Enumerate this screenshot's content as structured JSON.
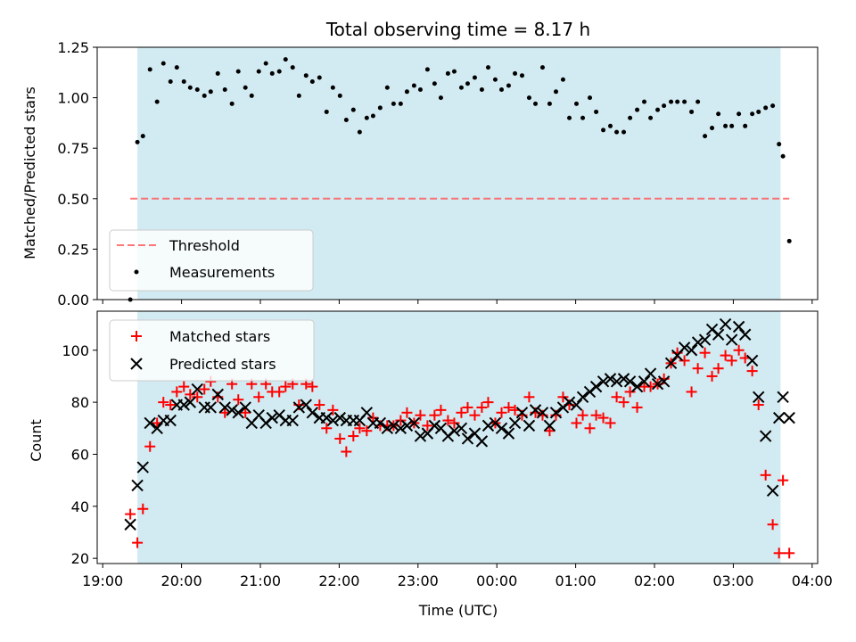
{
  "chart_data": [
    {
      "type": "scatter",
      "title": "Total observing time = 8.17 h",
      "xlabel": "",
      "ylabel": "Matched/Predicted stars",
      "x_unit": "hours after 19:00 UTC on the night start",
      "xlim": [
        -0.07,
        9.07
      ],
      "ylim": [
        0,
        1.25
      ],
      "yticks": [
        "0.00",
        "0.25",
        "0.50",
        "0.75",
        "1.00",
        "1.25"
      ],
      "shaded_interval": [
        0.44,
        8.6
      ],
      "shade_color": "#add8e6",
      "legend": {
        "location": "lower left",
        "entries": [
          "Threshold",
          "Measurements"
        ]
      },
      "series": [
        {
          "name": "Threshold",
          "style": "dashed line",
          "color": "#ff5555",
          "x": [
            0.35,
            8.71
          ],
          "y": [
            0.5,
            0.5
          ]
        },
        {
          "name": "Measurements",
          "style": "dots",
          "color": "#000000",
          "x": [
            0.35,
            0.44,
            0.51,
            0.6,
            0.69,
            0.77,
            0.86,
            0.94,
            1.03,
            1.11,
            1.2,
            1.29,
            1.37,
            1.46,
            1.55,
            1.64,
            1.72,
            1.81,
            1.89,
            1.98,
            2.07,
            2.15,
            2.24,
            2.32,
            2.41,
            2.49,
            2.58,
            2.66,
            2.75,
            2.84,
            2.92,
            3.01,
            3.09,
            3.18,
            3.26,
            3.35,
            3.43,
            3.52,
            3.61,
            3.69,
            3.78,
            3.86,
            3.95,
            4.03,
            4.12,
            4.21,
            4.29,
            4.38,
            4.46,
            4.55,
            4.63,
            4.72,
            4.81,
            4.89,
            4.98,
            5.06,
            5.15,
            5.23,
            5.32,
            5.41,
            5.49,
            5.58,
            5.67,
            5.75,
            5.84,
            5.92,
            6.01,
            6.09,
            6.18,
            6.26,
            6.35,
            6.44,
            6.52,
            6.61,
            6.69,
            6.78,
            6.87,
            6.95,
            7.04,
            7.12,
            7.21,
            7.29,
            7.38,
            7.47,
            7.55,
            7.64,
            7.73,
            7.81,
            7.9,
            7.98,
            8.07,
            8.15,
            8.24,
            8.32,
            8.41,
            8.5,
            8.58,
            8.63,
            8.71
          ],
          "y": [
            0.0,
            0.78,
            0.81,
            1.14,
            0.98,
            1.17,
            1.08,
            1.15,
            1.08,
            1.05,
            1.04,
            1.01,
            1.03,
            1.12,
            1.04,
            0.97,
            1.13,
            1.05,
            1.01,
            1.13,
            1.17,
            1.12,
            1.13,
            1.19,
            1.15,
            1.01,
            1.11,
            1.08,
            1.1,
            0.93,
            1.05,
            1.01,
            0.89,
            0.94,
            0.83,
            0.9,
            0.91,
            0.95,
            1.05,
            0.97,
            0.97,
            1.03,
            1.06,
            1.04,
            1.14,
            1.07,
            1.0,
            1.12,
            1.13,
            1.05,
            1.07,
            1.1,
            1.04,
            1.15,
            1.09,
            1.04,
            1.06,
            1.12,
            1.11,
            1.0,
            0.97,
            1.15,
            0.97,
            1.03,
            1.09,
            0.9,
            0.97,
            0.9,
            1.0,
            0.93,
            0.84,
            0.86,
            0.83,
            0.83,
            0.9,
            0.94,
            0.98,
            0.9,
            0.94,
            0.96,
            0.98,
            0.98,
            0.98,
            0.93,
            0.98,
            0.81,
            0.85,
            0.92,
            0.86,
            0.86,
            0.92,
            0.86,
            0.92,
            0.93,
            0.95,
            0.96,
            0.77,
            0.71,
            0.29
          ]
        }
      ]
    },
    {
      "type": "scatter",
      "title": "",
      "xlabel": "Time (UTC)",
      "ylabel": "Count",
      "x_unit": "hours after 19:00 UTC on the night start",
      "xlim": [
        -0.07,
        9.07
      ],
      "ylim": [
        18,
        115
      ],
      "xticks": [
        "19:00",
        "20:00",
        "21:00",
        "22:00",
        "23:00",
        "00:00",
        "01:00",
        "02:00",
        "03:00",
        "04:00"
      ],
      "yticks": [
        "20",
        "40",
        "60",
        "80",
        "100"
      ],
      "shaded_interval": [
        0.44,
        8.6
      ],
      "shade_color": "#add8e6",
      "legend": {
        "location": "upper left",
        "entries": [
          "Matched stars",
          "Predicted stars"
        ]
      },
      "series": [
        {
          "name": "Matched stars",
          "marker": "+",
          "color": "#ff0000",
          "x": [
            0.35,
            0.44,
            0.51,
            0.6,
            0.69,
            0.77,
            0.86,
            0.94,
            1.03,
            1.11,
            1.2,
            1.29,
            1.37,
            1.46,
            1.55,
            1.64,
            1.72,
            1.81,
            1.89,
            1.98,
            2.07,
            2.15,
            2.24,
            2.32,
            2.41,
            2.49,
            2.58,
            2.66,
            2.75,
            2.84,
            2.92,
            3.01,
            3.09,
            3.18,
            3.26,
            3.35,
            3.43,
            3.52,
            3.61,
            3.69,
            3.78,
            3.86,
            3.95,
            4.03,
            4.12,
            4.21,
            4.29,
            4.38,
            4.46,
            4.55,
            4.63,
            4.72,
            4.81,
            4.89,
            4.98,
            5.06,
            5.15,
            5.23,
            5.32,
            5.41,
            5.49,
            5.58,
            5.67,
            5.75,
            5.84,
            5.92,
            6.01,
            6.09,
            6.18,
            6.26,
            6.35,
            6.44,
            6.52,
            6.61,
            6.69,
            6.78,
            6.87,
            6.95,
            7.04,
            7.12,
            7.21,
            7.29,
            7.38,
            7.47,
            7.55,
            7.64,
            7.73,
            7.81,
            7.9,
            7.98,
            8.07,
            8.15,
            8.24,
            8.32,
            8.41,
            8.5,
            8.58,
            8.63,
            8.71
          ],
          "y": [
            37,
            26,
            39,
            63,
            72,
            80,
            79,
            84,
            86,
            83,
            82,
            85,
            88,
            82,
            76,
            87,
            81,
            76,
            87,
            82,
            87,
            84,
            84,
            86,
            87,
            79,
            87,
            86,
            79,
            70,
            77,
            66,
            61,
            67,
            70,
            69,
            74,
            71,
            71,
            71,
            73,
            76,
            72,
            75,
            71,
            75,
            77,
            73,
            72,
            76,
            78,
            75,
            78,
            80,
            72,
            76,
            78,
            77,
            75,
            82,
            76,
            75,
            69,
            75,
            82,
            79,
            72,
            75,
            70,
            75,
            74,
            72,
            82,
            80,
            84,
            78,
            86,
            86,
            87,
            89,
            95,
            99,
            96,
            84,
            93,
            99,
            90,
            93,
            98,
            96,
            100,
            97,
            92,
            79,
            52,
            33,
            22,
            50,
            22
          ]
        },
        {
          "name": "Predicted stars",
          "marker": "x",
          "color": "#000000",
          "x": [
            0.35,
            0.44,
            0.51,
            0.6,
            0.69,
            0.77,
            0.86,
            0.94,
            1.03,
            1.11,
            1.2,
            1.29,
            1.37,
            1.46,
            1.55,
            1.64,
            1.72,
            1.81,
            1.89,
            1.98,
            2.07,
            2.15,
            2.24,
            2.32,
            2.41,
            2.49,
            2.58,
            2.66,
            2.75,
            2.84,
            2.92,
            3.01,
            3.09,
            3.18,
            3.26,
            3.35,
            3.43,
            3.52,
            3.61,
            3.69,
            3.78,
            3.86,
            3.95,
            4.03,
            4.12,
            4.21,
            4.29,
            4.38,
            4.46,
            4.55,
            4.63,
            4.72,
            4.81,
            4.89,
            4.98,
            5.06,
            5.15,
            5.23,
            5.32,
            5.41,
            5.49,
            5.58,
            5.67,
            5.75,
            5.84,
            5.92,
            6.01,
            6.09,
            6.18,
            6.26,
            6.35,
            6.44,
            6.52,
            6.61,
            6.69,
            6.78,
            6.87,
            6.95,
            7.04,
            7.12,
            7.21,
            7.29,
            7.38,
            7.47,
            7.55,
            7.64,
            7.73,
            7.81,
            7.9,
            7.98,
            8.07,
            8.15,
            8.24,
            8.32,
            8.41,
            8.5,
            8.58,
            8.63,
            8.71
          ],
          "y": [
            33,
            48,
            55,
            72,
            70,
            73,
            73,
            79,
            79,
            80,
            85,
            78,
            78,
            83,
            78,
            77,
            76,
            78,
            72,
            75,
            72,
            74,
            75,
            73,
            73,
            78,
            79,
            76,
            74,
            74,
            73,
            74,
            73,
            73,
            73,
            76,
            72,
            72,
            70,
            71,
            70,
            71,
            72,
            67,
            68,
            71,
            70,
            67,
            69,
            70,
            66,
            68,
            65,
            71,
            72,
            70,
            68,
            72,
            76,
            71,
            77,
            76,
            71,
            76,
            78,
            80,
            79,
            82,
            84,
            86,
            88,
            89,
            88,
            89,
            88,
            86,
            88,
            91,
            87,
            88,
            95,
            98,
            101,
            100,
            103,
            104,
            108,
            106,
            110,
            104,
            109,
            106,
            96,
            82,
            67,
            46,
            74,
            82,
            74
          ]
        }
      ]
    }
  ]
}
